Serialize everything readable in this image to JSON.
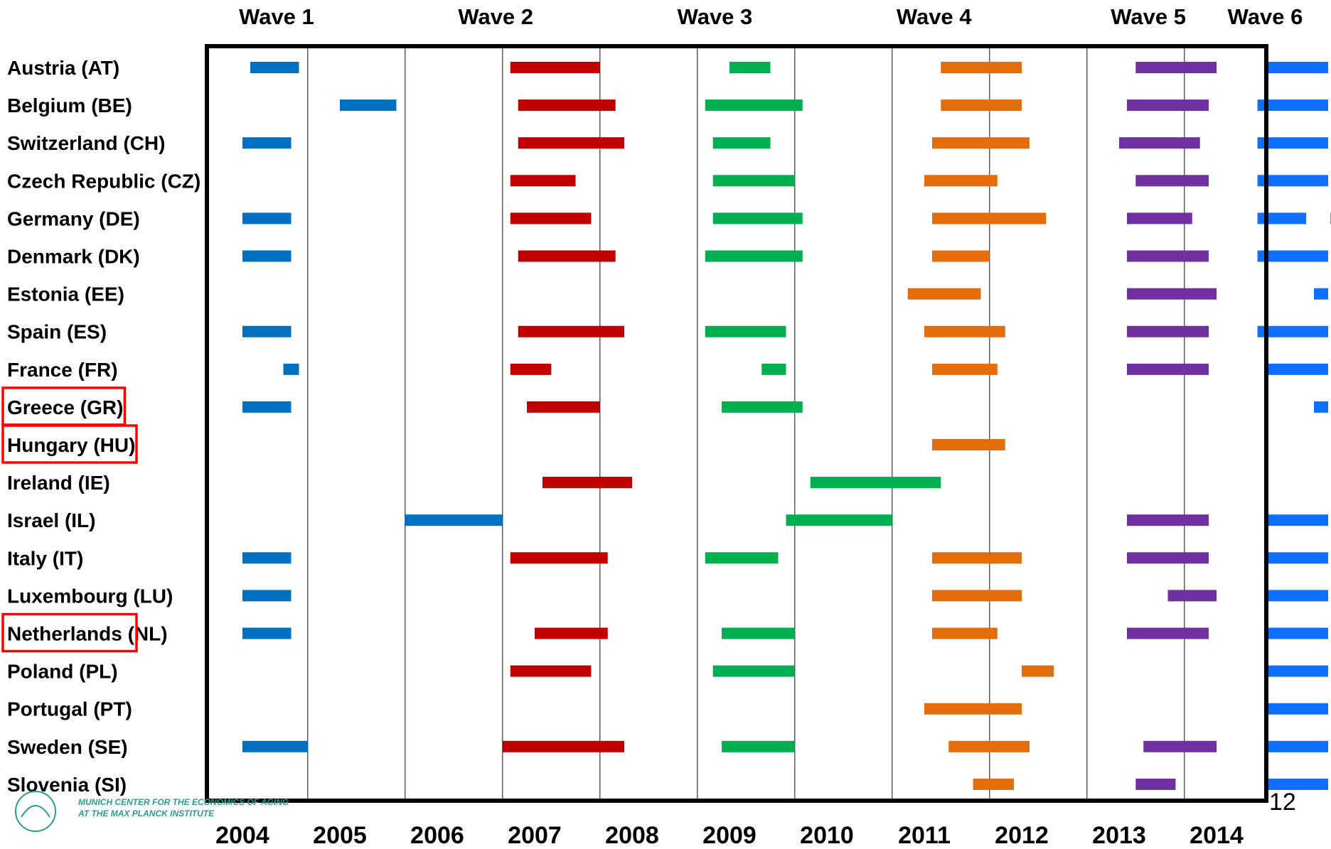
{
  "chart_data": {
    "type": "gantt",
    "title": "",
    "xlabel": "",
    "ylabel": "",
    "x_ticks": [
      "2004",
      "2005",
      "2006",
      "2007",
      "2008",
      "2009",
      "2010",
      "2011",
      "2012",
      "2013",
      "2014"
    ],
    "xlim": [
      2003.6,
      2014.6
    ],
    "grid": "vertical",
    "series": [
      {
        "name": "Wave 1",
        "color": "#0070c0"
      },
      {
        "name": "Wave 2",
        "color": "#c00000"
      },
      {
        "name": "Wave 3",
        "color": "#00b050"
      },
      {
        "name": "Wave 4",
        "color": "#e46c0a"
      },
      {
        "name": "Wave 5",
        "color": "#7030a0"
      },
      {
        "name": "Wave 6",
        "color": "#0f6fff"
      }
    ],
    "countries": [
      {
        "label": "Austria (AT)",
        "highlighted": false,
        "bars": [
          {
            "w": 0,
            "start": 2004.08,
            "end": 2004.58
          },
          {
            "w": 1,
            "start": 2006.75,
            "end": 2007.67
          },
          {
            "w": 2,
            "start": 2009.0,
            "end": 2009.42
          },
          {
            "w": 3,
            "start": 2011.17,
            "end": 2012.0
          },
          {
            "w": 4,
            "start": 2013.17,
            "end": 2014.0
          },
          {
            "w": 5,
            "start": 2014.5,
            "end": 2015.33
          }
        ]
      },
      {
        "label": "Belgium (BE)",
        "highlighted": false,
        "bars": [
          {
            "w": 0,
            "start": 2005.0,
            "end": 2005.58
          },
          {
            "w": 1,
            "start": 2006.83,
            "end": 2007.83
          },
          {
            "w": 2,
            "start": 2008.75,
            "end": 2009.75
          },
          {
            "w": 3,
            "start": 2011.17,
            "end": 2012.0
          },
          {
            "w": 4,
            "start": 2013.08,
            "end": 2013.92
          },
          {
            "w": 5,
            "start": 2014.42,
            "end": 2015.25
          }
        ]
      },
      {
        "label": "Switzerland (CH)",
        "highlighted": false,
        "bars": [
          {
            "w": 0,
            "start": 2004.0,
            "end": 2004.5
          },
          {
            "w": 1,
            "start": 2006.83,
            "end": 2007.92
          },
          {
            "w": 2,
            "start": 2008.83,
            "end": 2009.42
          },
          {
            "w": 3,
            "start": 2011.08,
            "end": 2012.08
          },
          {
            "w": 4,
            "start": 2013.0,
            "end": 2013.83
          },
          {
            "w": 5,
            "start": 2014.42,
            "end": 2015.25
          }
        ]
      },
      {
        "label": "Czech Republic (CZ)",
        "highlighted": false,
        "bars": [
          {
            "w": 1,
            "start": 2006.75,
            "end": 2007.42
          },
          {
            "w": 2,
            "start": 2008.83,
            "end": 2009.67
          },
          {
            "w": 3,
            "start": 2011.0,
            "end": 2011.75
          },
          {
            "w": 4,
            "start": 2013.17,
            "end": 2013.92
          },
          {
            "w": 5,
            "start": 2014.42,
            "end": 2015.25
          }
        ]
      },
      {
        "label": "Germany (DE)",
        "highlighted": false,
        "bars": [
          {
            "w": 0,
            "start": 2004.0,
            "end": 2004.5
          },
          {
            "w": 1,
            "start": 2006.75,
            "end": 2007.58
          },
          {
            "w": 2,
            "start": 2008.83,
            "end": 2009.75
          },
          {
            "w": 3,
            "start": 2011.08,
            "end": 2012.25
          },
          {
            "w": 4,
            "start": 2013.08,
            "end": 2013.75
          },
          {
            "w": 5,
            "start": 2014.42,
            "end": 2014.92
          },
          {
            "w": 5,
            "start": 2015.17,
            "end": 2015.67
          }
        ]
      },
      {
        "label": "Denmark (DK)",
        "highlighted": false,
        "bars": [
          {
            "w": 0,
            "start": 2004.0,
            "end": 2004.5
          },
          {
            "w": 1,
            "start": 2006.83,
            "end": 2007.83
          },
          {
            "w": 2,
            "start": 2008.75,
            "end": 2009.75
          },
          {
            "w": 3,
            "start": 2011.08,
            "end": 2011.67
          },
          {
            "w": 4,
            "start": 2013.08,
            "end": 2013.92
          },
          {
            "w": 5,
            "start": 2014.42,
            "end": 2015.25
          }
        ]
      },
      {
        "label": "Estonia (EE)",
        "highlighted": false,
        "bars": [
          {
            "w": 3,
            "start": 2010.83,
            "end": 2011.58
          },
          {
            "w": 4,
            "start": 2013.08,
            "end": 2014.0
          },
          {
            "w": 5,
            "start": 2015.0,
            "end": 2015.67
          }
        ]
      },
      {
        "label": "Spain (ES)",
        "highlighted": false,
        "bars": [
          {
            "w": 0,
            "start": 2004.0,
            "end": 2004.5
          },
          {
            "w": 1,
            "start": 2006.83,
            "end": 2007.92
          },
          {
            "w": 2,
            "start": 2008.75,
            "end": 2009.58
          },
          {
            "w": 3,
            "start": 2011.0,
            "end": 2011.83
          },
          {
            "w": 4,
            "start": 2013.08,
            "end": 2013.92
          },
          {
            "w": 5,
            "start": 2014.42,
            "end": 2015.25
          }
        ]
      },
      {
        "label": "France (FR)",
        "highlighted": false,
        "bars": [
          {
            "w": 0,
            "start": 2004.42,
            "end": 2004.58
          },
          {
            "w": 1,
            "start": 2006.75,
            "end": 2007.17
          },
          {
            "w": 2,
            "start": 2009.33,
            "end": 2009.58
          },
          {
            "w": 3,
            "start": 2011.08,
            "end": 2011.75
          },
          {
            "w": 4,
            "start": 2013.08,
            "end": 2013.92
          },
          {
            "w": 5,
            "start": 2014.5,
            "end": 2015.33
          }
        ]
      },
      {
        "label": "Greece (GR)",
        "highlighted": true,
        "bars": [
          {
            "w": 0,
            "start": 2004.0,
            "end": 2004.5
          },
          {
            "w": 1,
            "start": 2006.92,
            "end": 2007.67
          },
          {
            "w": 2,
            "start": 2008.92,
            "end": 2009.75
          },
          {
            "w": 5,
            "start": 2015.0,
            "end": 2015.67
          }
        ]
      },
      {
        "label": "Hungary (HU)",
        "highlighted": true,
        "bars": [
          {
            "w": 3,
            "start": 2011.08,
            "end": 2011.83
          }
        ]
      },
      {
        "label": "Ireland (IE)",
        "highlighted": false,
        "bars": [
          {
            "w": 1,
            "start": 2007.08,
            "end": 2008.0
          },
          {
            "w": 2,
            "start": 2009.83,
            "end": 2011.17
          }
        ]
      },
      {
        "label": "Israel (IL)",
        "highlighted": false,
        "bars": [
          {
            "w": 0,
            "start": 2005.67,
            "end": 2006.67
          },
          {
            "w": 2,
            "start": 2009.58,
            "end": 2010.67
          },
          {
            "w": 4,
            "start": 2013.08,
            "end": 2013.92
          },
          {
            "w": 5,
            "start": 2014.5,
            "end": 2015.33
          }
        ]
      },
      {
        "label": "Italy (IT)",
        "highlighted": false,
        "bars": [
          {
            "w": 0,
            "start": 2004.0,
            "end": 2004.5
          },
          {
            "w": 1,
            "start": 2006.75,
            "end": 2007.75
          },
          {
            "w": 2,
            "start": 2008.75,
            "end": 2009.5
          },
          {
            "w": 3,
            "start": 2011.08,
            "end": 2012.0
          },
          {
            "w": 4,
            "start": 2013.08,
            "end": 2013.92
          },
          {
            "w": 5,
            "start": 2014.5,
            "end": 2015.33
          }
        ]
      },
      {
        "label": "Luxembourg (LU)",
        "highlighted": false,
        "bars": [
          {
            "w": 0,
            "start": 2004.0,
            "end": 2004.5
          },
          {
            "w": 3,
            "start": 2011.08,
            "end": 2012.0
          },
          {
            "w": 4,
            "start": 2013.5,
            "end": 2014.0
          },
          {
            "w": 5,
            "start": 2014.5,
            "end": 2015.33
          }
        ]
      },
      {
        "label": "Netherlands (NL)",
        "highlighted": true,
        "bars": [
          {
            "w": 0,
            "start": 2004.0,
            "end": 2004.5
          },
          {
            "w": 1,
            "start": 2007.0,
            "end": 2007.75
          },
          {
            "w": 2,
            "start": 2008.92,
            "end": 2009.67
          },
          {
            "w": 3,
            "start": 2011.08,
            "end": 2011.75
          },
          {
            "w": 4,
            "start": 2013.08,
            "end": 2013.92
          },
          {
            "w": 5,
            "start": 2014.5,
            "end": 2015.33
          }
        ]
      },
      {
        "label": "Poland (PL)",
        "highlighted": false,
        "bars": [
          {
            "w": 1,
            "start": 2006.75,
            "end": 2007.58
          },
          {
            "w": 2,
            "start": 2008.83,
            "end": 2009.67
          },
          {
            "w": 3,
            "start": 2012.0,
            "end": 2012.33
          },
          {
            "w": 5,
            "start": 2014.5,
            "end": 2015.33
          }
        ]
      },
      {
        "label": "Portugal (PT)",
        "highlighted": false,
        "bars": [
          {
            "w": 3,
            "start": 2011.0,
            "end": 2012.0
          },
          {
            "w": 5,
            "start": 2014.5,
            "end": 2015.33
          }
        ]
      },
      {
        "label": "Sweden (SE)",
        "highlighted": false,
        "bars": [
          {
            "w": 0,
            "start": 2004.0,
            "end": 2004.67
          },
          {
            "w": 1,
            "start": 2006.67,
            "end": 2007.92
          },
          {
            "w": 2,
            "start": 2008.92,
            "end": 2009.67
          },
          {
            "w": 3,
            "start": 2011.25,
            "end": 2012.08
          },
          {
            "w": 4,
            "start": 2013.25,
            "end": 2014.0
          },
          {
            "w": 5,
            "start": 2014.5,
            "end": 2015.33
          }
        ]
      },
      {
        "label": "Slovenia (SI)",
        "highlighted": false,
        "bars": [
          {
            "w": 3,
            "start": 2011.5,
            "end": 2011.92
          },
          {
            "w": 4,
            "start": 2013.17,
            "end": 2013.58
          },
          {
            "w": 5,
            "start": 2014.5,
            "end": 2015.33
          }
        ]
      }
    ]
  },
  "page_number": "12",
  "logo_text": [
    "MUNICH CENTER FOR THE ECONOMICS OF AGING",
    "AT THE MAX PLANCK INSTITUTE"
  ]
}
